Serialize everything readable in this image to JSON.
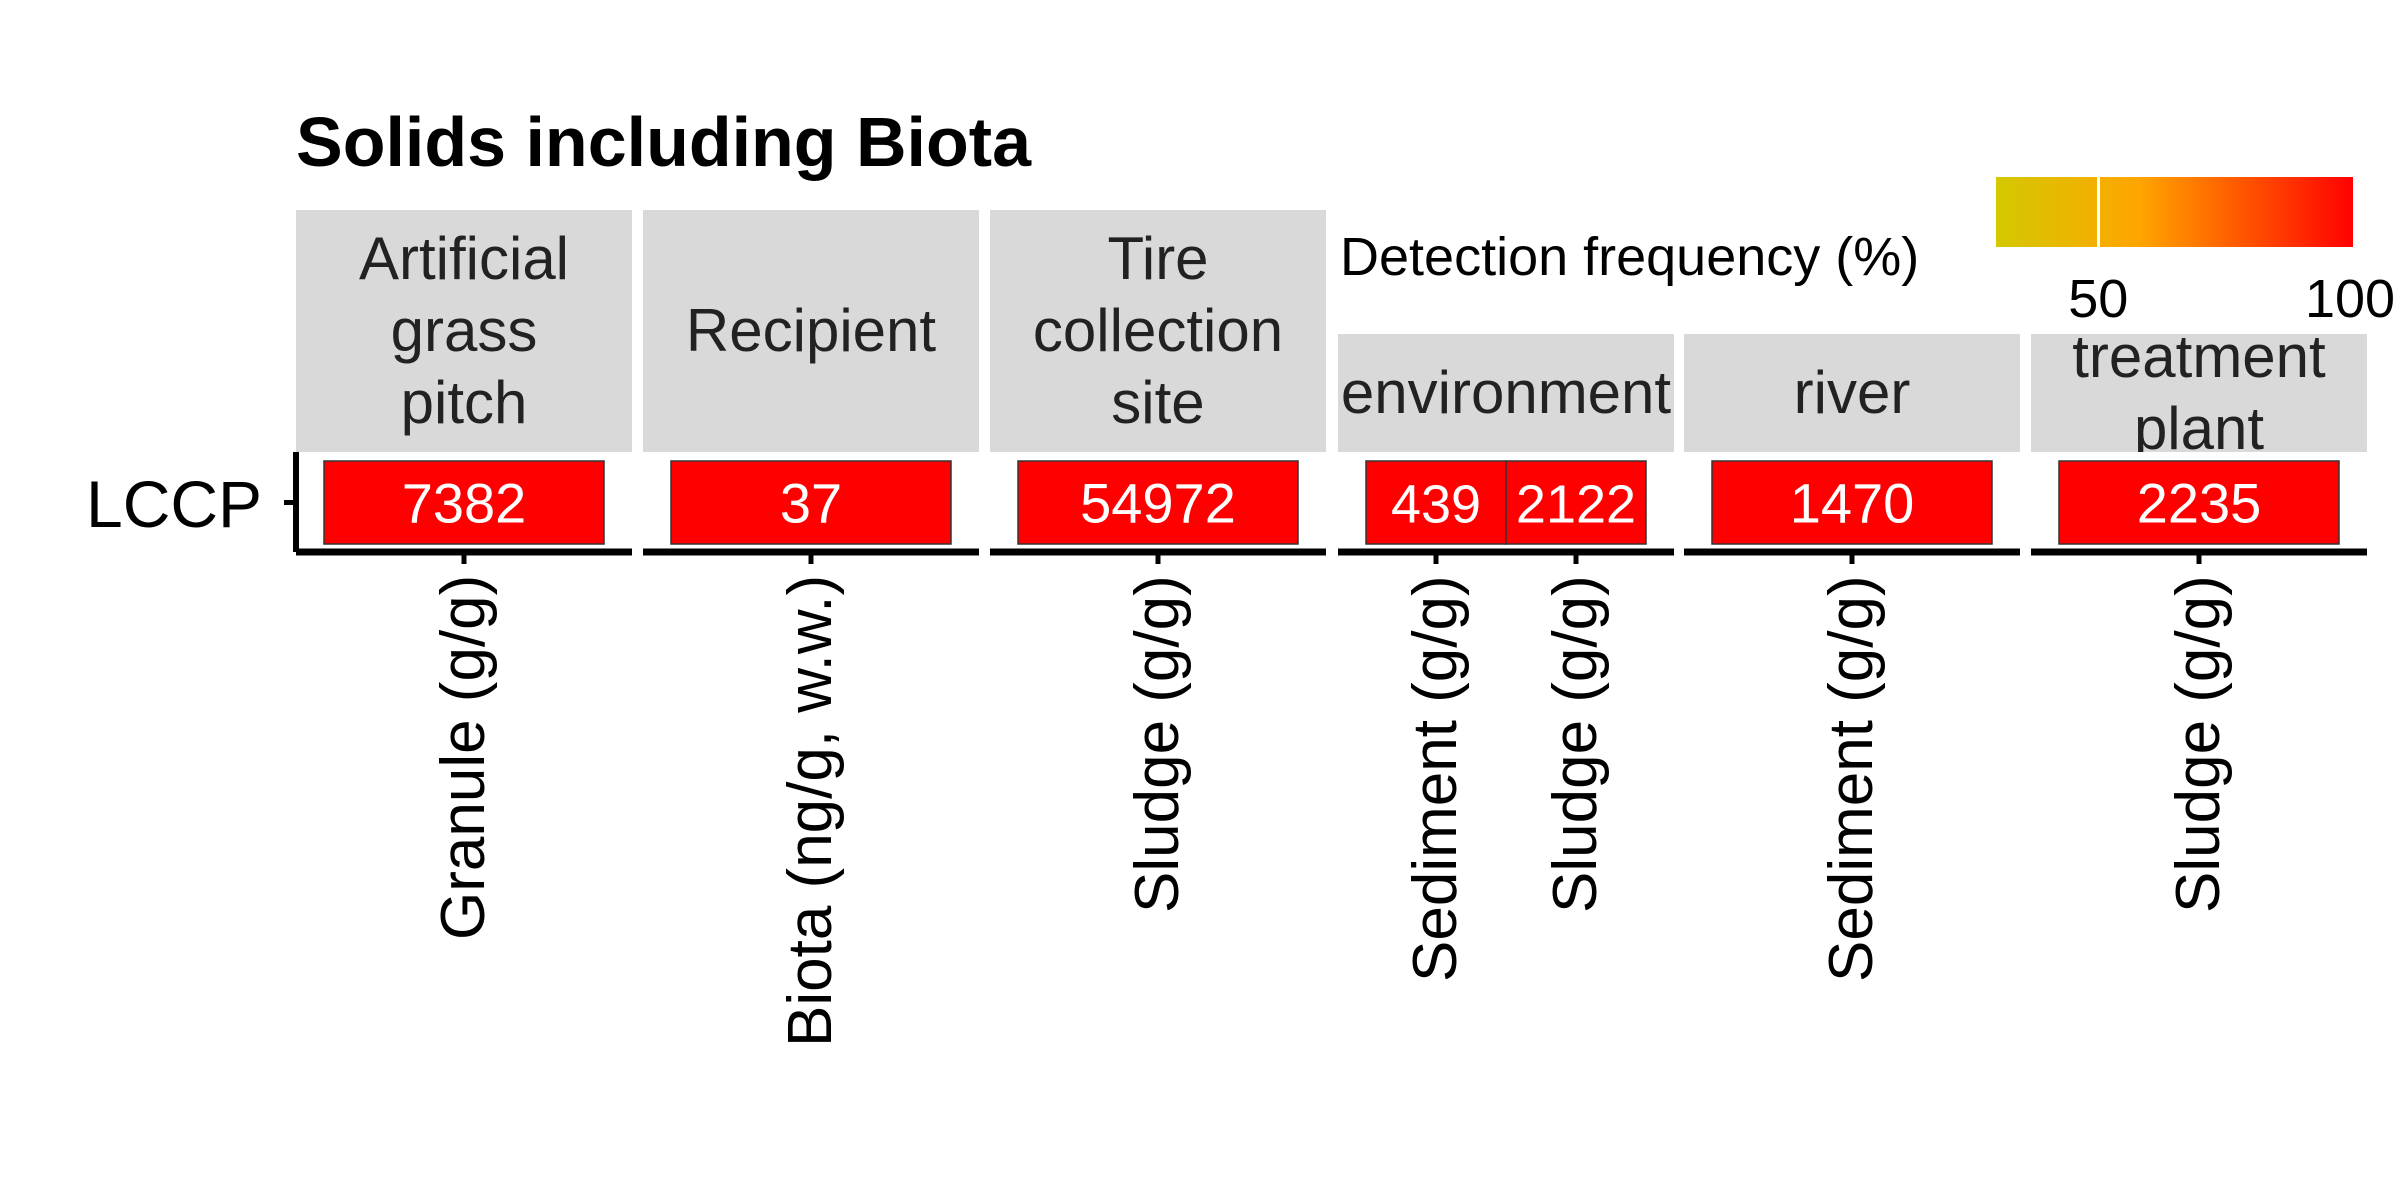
{
  "chart_data": {
    "type": "heatmap",
    "title": "Solids including Biota",
    "y_categories": [
      "LCCP"
    ],
    "facets": [
      {
        "label": "Artificial\ngrass\npitch",
        "columns": [
          {
            "x": "Granule (g/g)",
            "value": "7382",
            "detection_frequency": 100
          }
        ]
      },
      {
        "label": "Recipient",
        "columns": [
          {
            "x": "Biota (ng/g, w.w.)",
            "value": "37",
            "detection_frequency": 100
          }
        ]
      },
      {
        "label": "Tire\ncollection\nsite",
        "columns": [
          {
            "x": "Sludge (g/g)",
            "value": "54972",
            "detection_frequency": 100
          }
        ]
      },
      {
        "label": "environment",
        "columns": [
          {
            "x": "Sediment (g/g)",
            "value": "439",
            "detection_frequency": 100
          },
          {
            "x": "Sludge (g/g)",
            "value": "2122",
            "detection_frequency": 100
          }
        ]
      },
      {
        "label": "river",
        "columns": [
          {
            "x": "Sediment (g/g)",
            "value": "1470",
            "detection_frequency": 100
          }
        ]
      },
      {
        "label": "treatment\nplant",
        "columns": [
          {
            "x": "Sludge (g/g)",
            "value": "2235",
            "detection_frequency": 100
          }
        ]
      }
    ],
    "legend": {
      "title": "Detection frequency (%)",
      "ticks": [
        "50",
        "100"
      ],
      "tick_values": [
        50,
        100
      ],
      "range": [
        30,
        100
      ],
      "colors": [
        "#d4c800",
        "#ffa500",
        "#ff0000"
      ],
      "position": "top-right"
    }
  }
}
